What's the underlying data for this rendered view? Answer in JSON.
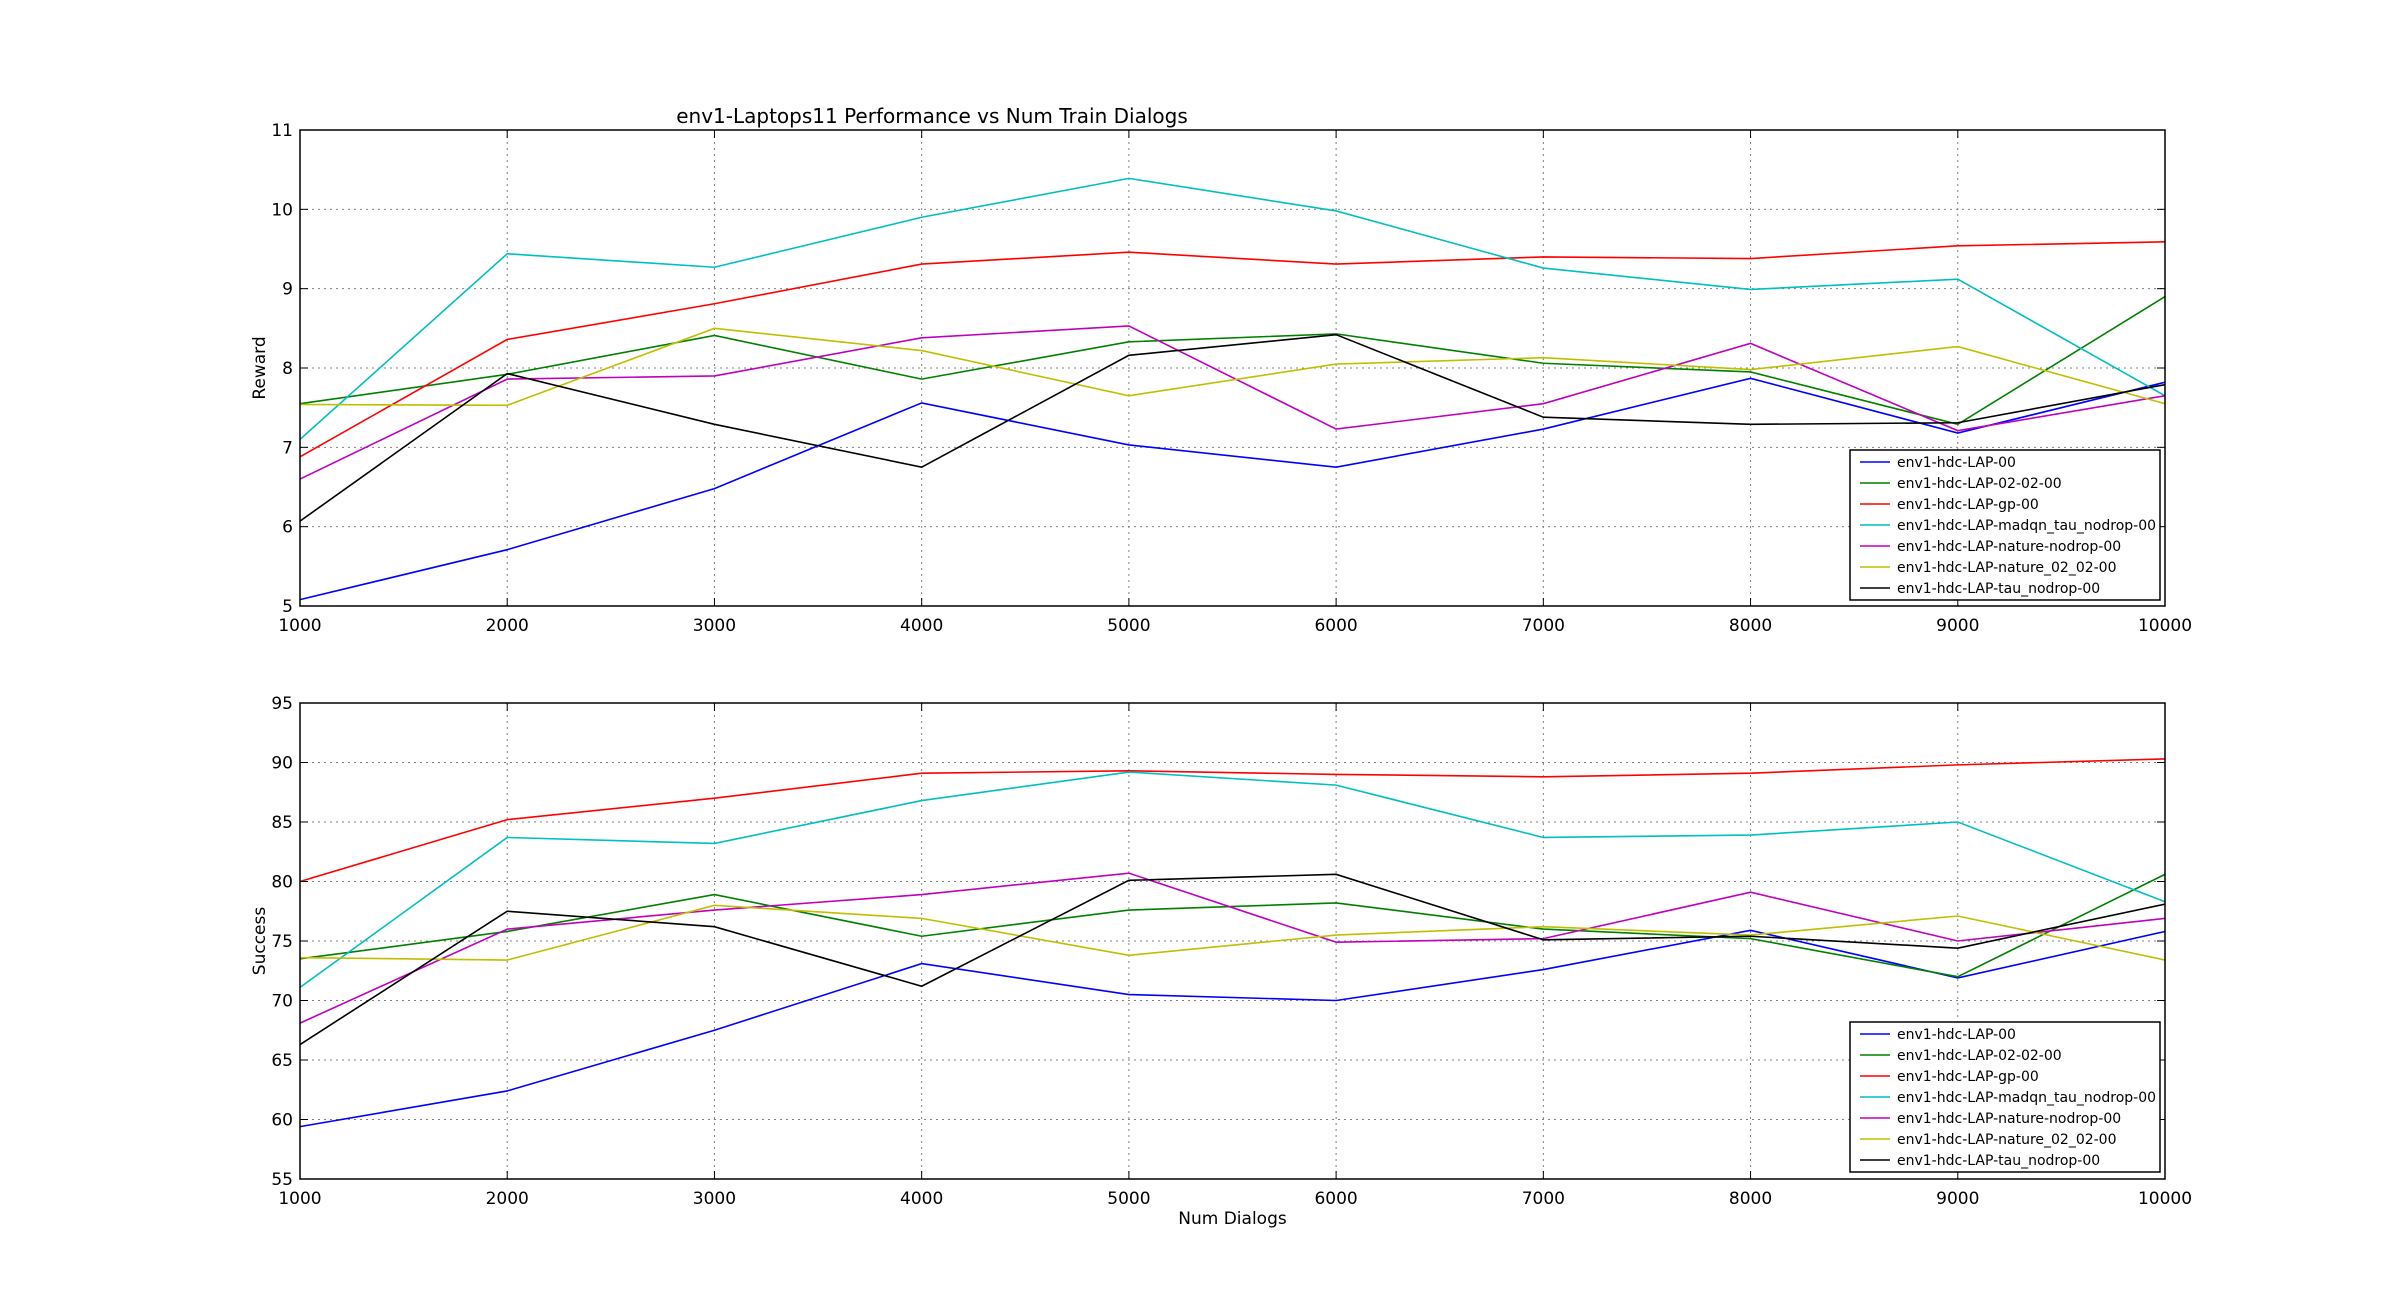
{
  "figure_title": "env1-Laptops11 Performance vs Num Train Dialogs",
  "chart_data": [
    {
      "type": "line",
      "title": "env1-Laptops11 Performance vs Num Train Dialogs",
      "xlabel": "",
      "ylabel": "Reward",
      "x": [
        1000,
        2000,
        3000,
        4000,
        5000,
        6000,
        7000,
        8000,
        9000,
        10000
      ],
      "xlim": [
        1000,
        10000
      ],
      "ylim": [
        5,
        11
      ],
      "xticks": [
        1000,
        2000,
        3000,
        4000,
        5000,
        6000,
        7000,
        8000,
        9000,
        10000
      ],
      "yticks": [
        5,
        6,
        7,
        8,
        9,
        10,
        11
      ],
      "grid": true,
      "legend_position": "lower-right",
      "series": [
        {
          "name": "env1-hdc-LAP-00",
          "color": "#0000ff",
          "values": [
            5.08,
            5.71,
            6.48,
            7.56,
            7.03,
            6.75,
            7.23,
            7.87,
            7.18,
            7.82
          ]
        },
        {
          "name": "env1-hdc-LAP-02-02-00",
          "color": "#008000",
          "values": [
            7.55,
            7.92,
            8.41,
            7.86,
            8.33,
            8.43,
            8.06,
            7.95,
            7.29,
            8.9
          ]
        },
        {
          "name": "env1-hdc-LAP-gp-00",
          "color": "#ff0000",
          "values": [
            6.88,
            8.36,
            8.81,
            9.31,
            9.46,
            9.31,
            9.4,
            9.38,
            9.54,
            9.59
          ]
        },
        {
          "name": "env1-hdc-LAP-madqn_tau_nodrop-00",
          "color": "#00bfbf",
          "values": [
            7.1,
            9.44,
            9.27,
            9.9,
            10.39,
            9.98,
            9.26,
            8.99,
            9.12,
            7.65
          ]
        },
        {
          "name": "env1-hdc-LAP-nature-nodrop-00",
          "color": "#bf00bf",
          "values": [
            6.6,
            7.86,
            7.9,
            8.38,
            8.53,
            7.23,
            7.55,
            8.31,
            7.21,
            7.65
          ]
        },
        {
          "name": "env1-hdc-LAP-nature_02_02-00",
          "color": "#bfbf00",
          "values": [
            7.54,
            7.53,
            8.5,
            8.22,
            7.65,
            8.05,
            8.13,
            7.98,
            8.27,
            7.55
          ]
        },
        {
          "name": "env1-hdc-LAP-tau_nodrop-00",
          "color": "#000000",
          "values": [
            6.07,
            7.93,
            7.29,
            6.75,
            8.16,
            8.42,
            7.38,
            7.29,
            7.31,
            7.79
          ]
        }
      ]
    },
    {
      "type": "line",
      "title": "",
      "xlabel": "Num Dialogs",
      "ylabel": "Success",
      "x": [
        1000,
        2000,
        3000,
        4000,
        5000,
        6000,
        7000,
        8000,
        9000,
        10000
      ],
      "xlim": [
        1000,
        10000
      ],
      "ylim": [
        55,
        95
      ],
      "xticks": [
        1000,
        2000,
        3000,
        4000,
        5000,
        6000,
        7000,
        8000,
        9000,
        10000
      ],
      "yticks": [
        55,
        60,
        65,
        70,
        75,
        80,
        85,
        90,
        95
      ],
      "grid": true,
      "legend_position": "lower-right",
      "series": [
        {
          "name": "env1-hdc-LAP-00",
          "color": "#0000ff",
          "values": [
            59.4,
            62.4,
            67.5,
            73.1,
            70.5,
            70.0,
            72.6,
            75.9,
            71.9,
            75.8
          ]
        },
        {
          "name": "env1-hdc-LAP-02-02-00",
          "color": "#008000",
          "values": [
            73.5,
            75.8,
            78.9,
            75.4,
            77.6,
            78.2,
            76.0,
            75.2,
            72.0,
            80.6
          ]
        },
        {
          "name": "env1-hdc-LAP-gp-00",
          "color": "#ff0000",
          "values": [
            80.0,
            85.2,
            87.0,
            89.1,
            89.3,
            89.0,
            88.8,
            89.1,
            89.8,
            90.3
          ]
        },
        {
          "name": "env1-hdc-LAP-madqn_tau_nodrop-00",
          "color": "#00bfbf",
          "values": [
            71.1,
            83.7,
            83.2,
            86.8,
            89.2,
            88.1,
            83.7,
            83.9,
            85.0,
            78.3
          ]
        },
        {
          "name": "env1-hdc-LAP-nature-nodrop-00",
          "color": "#bf00bf",
          "values": [
            68.1,
            76.0,
            77.6,
            78.9,
            80.7,
            74.9,
            75.2,
            79.1,
            75.0,
            76.9
          ]
        },
        {
          "name": "env1-hdc-LAP-nature_02_02-00",
          "color": "#bfbf00",
          "values": [
            73.6,
            73.4,
            78.0,
            76.9,
            73.8,
            75.5,
            76.2,
            75.5,
            77.1,
            73.4
          ]
        },
        {
          "name": "env1-hdc-LAP-tau_nodrop-00",
          "color": "#000000",
          "values": [
            66.3,
            77.5,
            76.2,
            71.2,
            80.1,
            80.6,
            75.1,
            75.4,
            74.4,
            78.1
          ]
        }
      ]
    }
  ]
}
